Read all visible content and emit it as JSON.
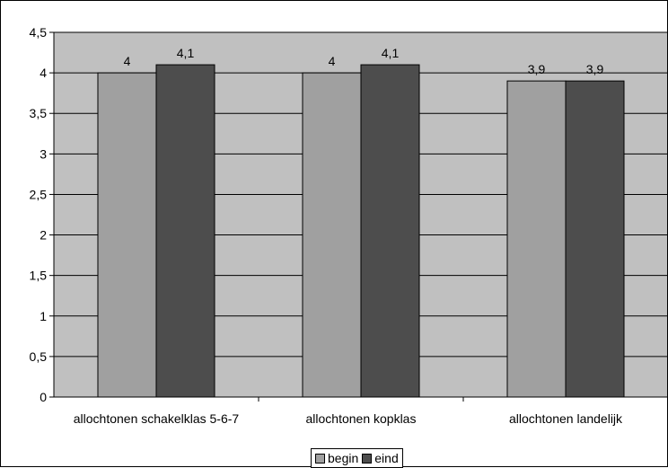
{
  "chart_data": {
    "type": "bar",
    "categories": [
      "allochtonen schakelklas 5-6-7",
      "allochtonen kopklas",
      "allochtonen landelijk"
    ],
    "series": [
      {
        "name": "begin",
        "values": [
          4,
          4,
          3.9
        ],
        "labels": [
          "4",
          "4",
          "3,9"
        ],
        "color": "#A0A0A0"
      },
      {
        "name": "eind",
        "values": [
          4.1,
          4.1,
          3.9
        ],
        "labels": [
          "4,1",
          "4,1",
          "3,9"
        ],
        "color": "#4D4D4D"
      }
    ],
    "ylim": [
      0,
      4.5
    ],
    "yticks": [
      0,
      0.5,
      1,
      1.5,
      2,
      2.5,
      3,
      3.5,
      4,
      4.5
    ],
    "ytick_labels": [
      "0",
      "0,5",
      "1",
      "1,5",
      "2",
      "2,5",
      "3",
      "3,5",
      "4",
      "4,5"
    ],
    "grid": true,
    "legend_position": "bottom",
    "plot_background": "#C0C0C0",
    "title": "",
    "xlabel": "",
    "ylabel": ""
  }
}
